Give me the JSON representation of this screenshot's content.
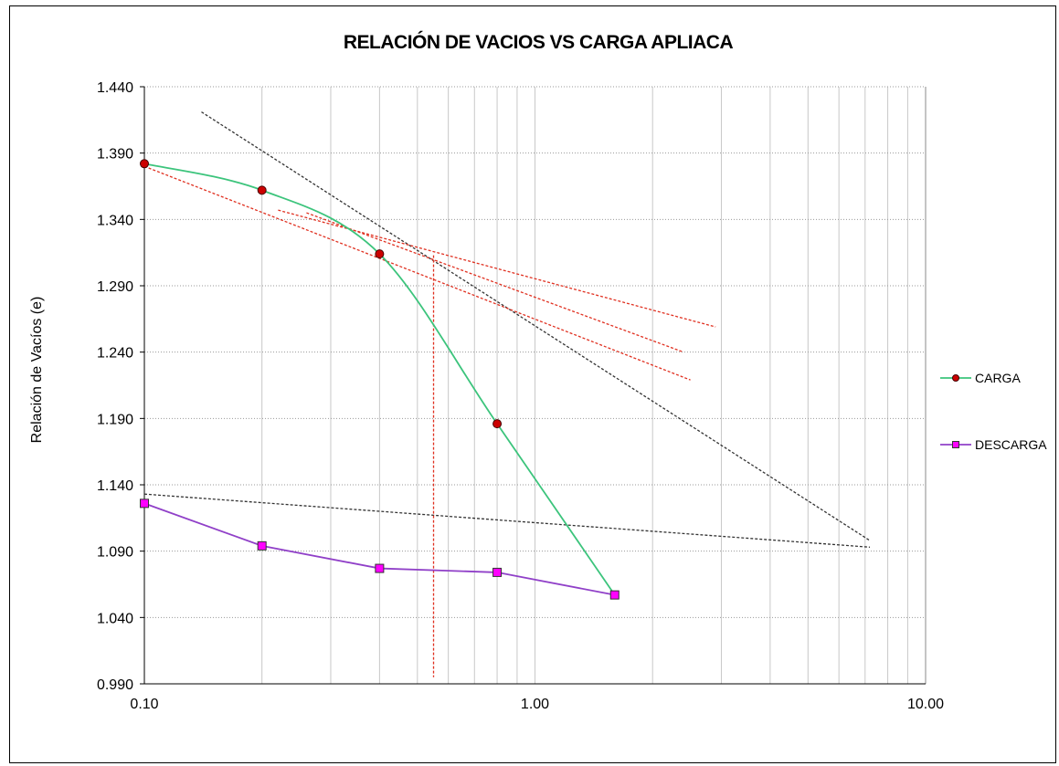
{
  "chart_data": {
    "type": "line",
    "title": "RELACIÓN DE VACIOS VS CARGA  APLIACA",
    "xlabel": "",
    "ylabel": "Relación de Vacíos (e)",
    "x_scale": "log",
    "xlim": [
      0.1,
      10
    ],
    "ylim": [
      0.99,
      1.44
    ],
    "y_ticks": [
      "0.990",
      "1.040",
      "1.090",
      "1.140",
      "1.190",
      "1.240",
      "1.290",
      "1.340",
      "1.390",
      "1.440"
    ],
    "x_ticks": [
      "0.10",
      "1.00",
      "10.00"
    ],
    "grid": true,
    "legend_position": "right",
    "series": [
      {
        "name": "CARGA",
        "color": "#3cc47c",
        "marker": "circle",
        "marker_color": "#cc0000",
        "x": [
          0.1,
          0.2,
          0.4,
          0.8,
          1.6
        ],
        "y": [
          1.382,
          1.362,
          1.314,
          1.186,
          1.057
        ],
        "marked": [
          true,
          true,
          true,
          true,
          false
        ]
      },
      {
        "name": "DESCARGA",
        "color": "#9040c8",
        "marker": "square",
        "marker_color": "#ff00ff",
        "x": [
          0.1,
          0.2,
          0.4,
          0.8,
          1.6
        ],
        "y": [
          1.126,
          1.094,
          1.077,
          1.074,
          1.057
        ],
        "marked": [
          true,
          true,
          true,
          true,
          true
        ]
      }
    ],
    "construction_lines": [
      {
        "color": "#333333",
        "x": [
          0.14,
          7.2
        ],
        "y": [
          1.421,
          1.098
        ]
      },
      {
        "color": "#333333",
        "x": [
          0.1,
          7.2
        ],
        "y": [
          1.133,
          1.093
        ]
      },
      {
        "color": "#e03020",
        "x": [
          0.1,
          2.5
        ],
        "y": [
          1.38,
          1.219
        ]
      },
      {
        "color": "#e03020",
        "x": [
          0.22,
          2.9
        ],
        "y": [
          1.347,
          1.259
        ]
      },
      {
        "color": "#e03020",
        "x": [
          0.26,
          2.4
        ],
        "y": [
          1.345,
          1.24
        ]
      },
      {
        "color": "#e03020",
        "x": [
          0.55,
          0.55
        ],
        "y": [
          1.313,
          0.995
        ]
      }
    ]
  }
}
